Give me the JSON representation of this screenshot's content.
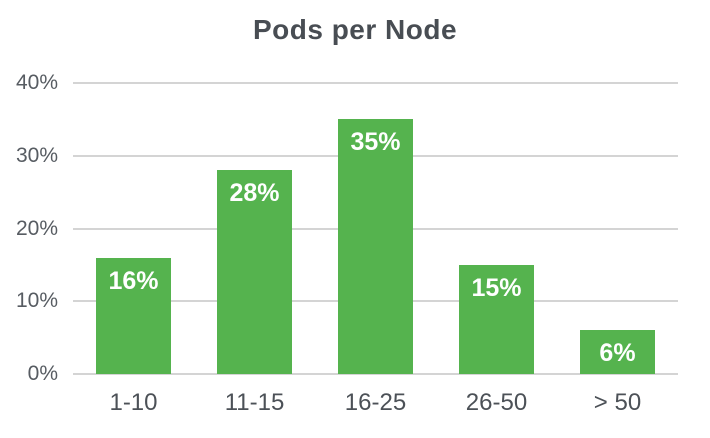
{
  "colors": {
    "bar_fill": "#55b34e",
    "gridline": "#d4d4d4",
    "title_text": "#484d53",
    "y_axis_text": "#575c62",
    "x_axis_text": "#4c5157",
    "bar_label_text": "#ffffff",
    "background": "#ffffff"
  },
  "chart_data": {
    "type": "bar",
    "title": "Pods per Node",
    "categories": [
      "1-10",
      "11-15",
      "16-25",
      "26-50",
      "> 50"
    ],
    "values": [
      16,
      28,
      35,
      15,
      6
    ],
    "value_labels": [
      "16%",
      "28%",
      "35%",
      "15%",
      "6%"
    ],
    "xlabel": "",
    "ylabel": "",
    "ylim": [
      0,
      40
    ],
    "yticks": [
      0,
      10,
      20,
      30,
      40
    ],
    "ytick_labels": [
      "0%",
      "10%",
      "20%",
      "30%",
      "40%"
    ],
    "grid": "horizontal-only",
    "legend": "none",
    "bar_label_position": "inside-top"
  }
}
